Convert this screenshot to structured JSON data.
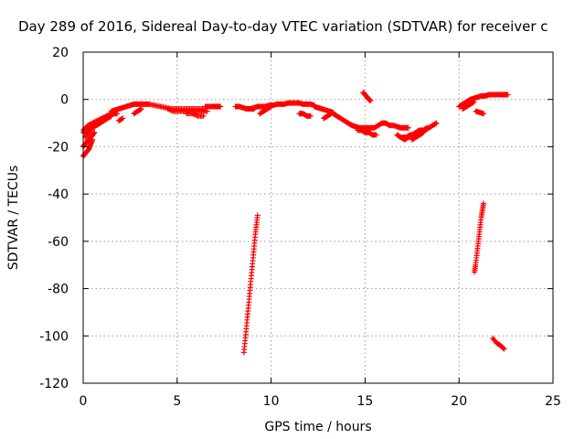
{
  "chart_data": {
    "type": "scatter",
    "title": "Day 289 of 2016, Sidereal Day-to-day VTEC variation (SDTVAR) for receiver c",
    "xlabel": "GPS time / hours",
    "ylabel": "SDTVAR / TECUs",
    "xlim": [
      0,
      25
    ],
    "ylim": [
      -120,
      20
    ],
    "x_ticks": [
      0,
      5,
      10,
      15,
      20,
      25
    ],
    "y_ticks": [
      -120,
      -100,
      -80,
      -60,
      -40,
      -20,
      0,
      20
    ],
    "grid": true,
    "marker": "+",
    "color": "#ff0000",
    "segments": [
      {
        "x": [
          0.0,
          0.1,
          0.2,
          0.3,
          0.4,
          0.5
        ],
        "y": [
          -24,
          -23,
          -22,
          -21,
          -19,
          -17
        ]
      },
      {
        "x": [
          0.0,
          0.1,
          0.2,
          0.3,
          0.4,
          0.5,
          0.6
        ],
        "y": [
          -20,
          -19,
          -18,
          -17,
          -16,
          -15,
          -14
        ]
      },
      {
        "x": [
          0.0,
          0.2,
          0.4,
          0.6,
          0.8,
          1.0,
          1.2,
          1.4,
          1.6,
          1.8
        ],
        "y": [
          -14,
          -13,
          -12,
          -11,
          -10,
          -9,
          -8,
          -7,
          -6,
          -6
        ]
      },
      {
        "x": [
          0.0,
          0.25,
          0.5,
          0.75,
          1.0,
          1.25,
          1.5
        ],
        "y": [
          -13,
          -11,
          -10,
          -9,
          -8,
          -7,
          -6
        ]
      },
      {
        "x": [
          0.1,
          0.3,
          0.5,
          0.7,
          0.9,
          1.1,
          1.3,
          1.5
        ],
        "y": [
          -16,
          -14,
          -12,
          -11,
          -10,
          -9,
          -8,
          -7
        ]
      },
      {
        "x": [
          1.5,
          1.7,
          1.9,
          2.1,
          2.3,
          2.5,
          2.7,
          2.9,
          3.1,
          3.3,
          3.5
        ],
        "y": [
          -5,
          -4.5,
          -4,
          -3.5,
          -3,
          -2.5,
          -2,
          -2,
          -2,
          -2,
          -2
        ]
      },
      {
        "x": [
          1.9,
          2.1
        ],
        "y": [
          -9,
          -8
        ]
      },
      {
        "x": [
          2.7,
          2.9,
          3.1
        ],
        "y": [
          -6,
          -5,
          -4
        ]
      },
      {
        "x": [
          3.5,
          3.8,
          4.1,
          4.4,
          4.7,
          5.0,
          5.3,
          5.6,
          5.9,
          6.2,
          6.5
        ],
        "y": [
          -2,
          -2.5,
          -3,
          -3.5,
          -4,
          -4,
          -4,
          -4,
          -4,
          -4,
          -4
        ]
      },
      {
        "x": [
          4.5,
          4.8,
          5.1,
          5.4,
          5.7,
          6.0,
          6.3,
          6.6
        ],
        "y": [
          -4,
          -5,
          -5,
          -5,
          -5,
          -5,
          -5,
          -5
        ]
      },
      {
        "x": [
          5.5,
          5.8,
          6.1,
          6.4
        ],
        "y": [
          -6,
          -6,
          -7,
          -7
        ]
      },
      {
        "x": [
          6.5,
          6.7,
          6.9,
          7.1,
          7.3
        ],
        "y": [
          -3,
          -3,
          -3,
          -3,
          -3
        ]
      },
      {
        "x": [
          8.1,
          8.3,
          8.5,
          8.7,
          8.9,
          9.1
        ],
        "y": [
          -3,
          -3,
          -3.5,
          -4,
          -4,
          -4
        ]
      },
      {
        "x": [
          8.9,
          9.1,
          9.3,
          9.5,
          9.7,
          9.9,
          10.1,
          10.3,
          10.5,
          10.7,
          10.9,
          11.1,
          11.3,
          11.5,
          11.7,
          11.9,
          12.1,
          12.3
        ],
        "y": [
          -4,
          -3.5,
          -3,
          -3,
          -3,
          -2.5,
          -2.5,
          -2,
          -2,
          -2,
          -1.5,
          -1.5,
          -1.5,
          -1.5,
          -2,
          -2,
          -2,
          -2.5
        ]
      },
      {
        "x": [
          9.4,
          9.6,
          9.8,
          10.0
        ],
        "y": [
          -6,
          -5,
          -4,
          -3
        ]
      },
      {
        "x": [
          11.5,
          11.7,
          11.9,
          12.1
        ],
        "y": [
          -6,
          -6,
          -7,
          -7
        ]
      },
      {
        "x": [
          12.3,
          12.5,
          12.7,
          12.9,
          13.1,
          13.3
        ],
        "y": [
          -3,
          -3.5,
          -4,
          -4.5,
          -5,
          -5.5
        ]
      },
      {
        "x": [
          12.8,
          13.0,
          13.2
        ],
        "y": [
          -8,
          -7,
          -6
        ]
      },
      {
        "x": [
          13.3,
          13.5,
          13.7,
          13.9,
          14.1,
          14.3
        ],
        "y": [
          -6,
          -7,
          -8,
          -9,
          -10,
          -11
        ]
      },
      {
        "x": [
          14.3,
          14.5,
          14.7,
          14.9,
          15.1,
          15.3,
          15.5,
          15.7,
          15.9,
          16.1,
          16.3,
          16.5,
          16.7,
          16.9,
          17.1,
          17.3
        ],
        "y": [
          -11,
          -11.5,
          -12,
          -12,
          -12,
          -12,
          -12,
          -11,
          -10,
          -10,
          -11,
          -11,
          -11.5,
          -12,
          -12,
          -12
        ]
      },
      {
        "x": [
          14.6,
          14.8,
          15.0,
          15.2,
          15.4,
          15.6
        ],
        "y": [
          -13,
          -13,
          -14,
          -14,
          -15,
          -15
        ]
      },
      {
        "x": [
          14.9,
          15.0,
          15.1,
          15.2,
          15.3
        ],
        "y": [
          3,
          2,
          1,
          0,
          -0.5
        ]
      },
      {
        "x": [
          17.0,
          17.2,
          17.4,
          17.6,
          17.8,
          18.0,
          18.2,
          18.4,
          18.6,
          18.8
        ],
        "y": [
          -16,
          -16,
          -15,
          -15,
          -14,
          -14,
          -13,
          -12,
          -11,
          -10
        ]
      },
      {
        "x": [
          16.7,
          16.9,
          17.1,
          17.3,
          17.5,
          17.7,
          17.9,
          18.1,
          18.3
        ],
        "y": [
          -15,
          -16,
          -17,
          -16,
          -15,
          -14,
          -13,
          -13,
          -12
        ]
      },
      {
        "x": [
          17.5,
          17.7,
          17.9,
          18.1
        ],
        "y": [
          -17,
          -16,
          -15,
          -14
        ]
      },
      {
        "x": [
          8.55,
          8.62,
          8.68,
          8.74,
          8.8,
          8.86,
          8.92,
          8.98,
          9.04,
          9.1,
          9.16,
          9.22,
          9.28
        ],
        "y": [
          -107,
          -102,
          -97,
          -92,
          -87,
          -82,
          -77,
          -72,
          -67,
          -62,
          -57,
          -53,
          -49
        ]
      },
      {
        "x": [
          20.0,
          20.2,
          20.4,
          20.6,
          20.8,
          21.0,
          21.2,
          21.4,
          21.6,
          21.8,
          22.0,
          22.2,
          22.4,
          22.6
        ],
        "y": [
          -3,
          -2,
          -1,
          0,
          0.5,
          1,
          1.5,
          1.5,
          2,
          2,
          2,
          2,
          2,
          2
        ]
      },
      {
        "x": [
          20.2,
          20.4,
          20.6,
          20.8
        ],
        "y": [
          -4,
          -3,
          -2,
          -1
        ]
      },
      {
        "x": [
          20.9,
          21.1,
          21.3
        ],
        "y": [
          -5,
          -5.5,
          -6
        ]
      },
      {
        "x": [
          20.82,
          20.88,
          20.94,
          21.0,
          21.06,
          21.12,
          21.18,
          21.24,
          21.3
        ],
        "y": [
          -73,
          -70,
          -66,
          -62,
          -58,
          -54,
          -50,
          -47,
          -44
        ]
      },
      {
        "x": [
          21.8,
          22.0,
          22.2,
          22.4
        ],
        "y": [
          -101,
          -103,
          -104,
          -105.5
        ]
      }
    ]
  }
}
